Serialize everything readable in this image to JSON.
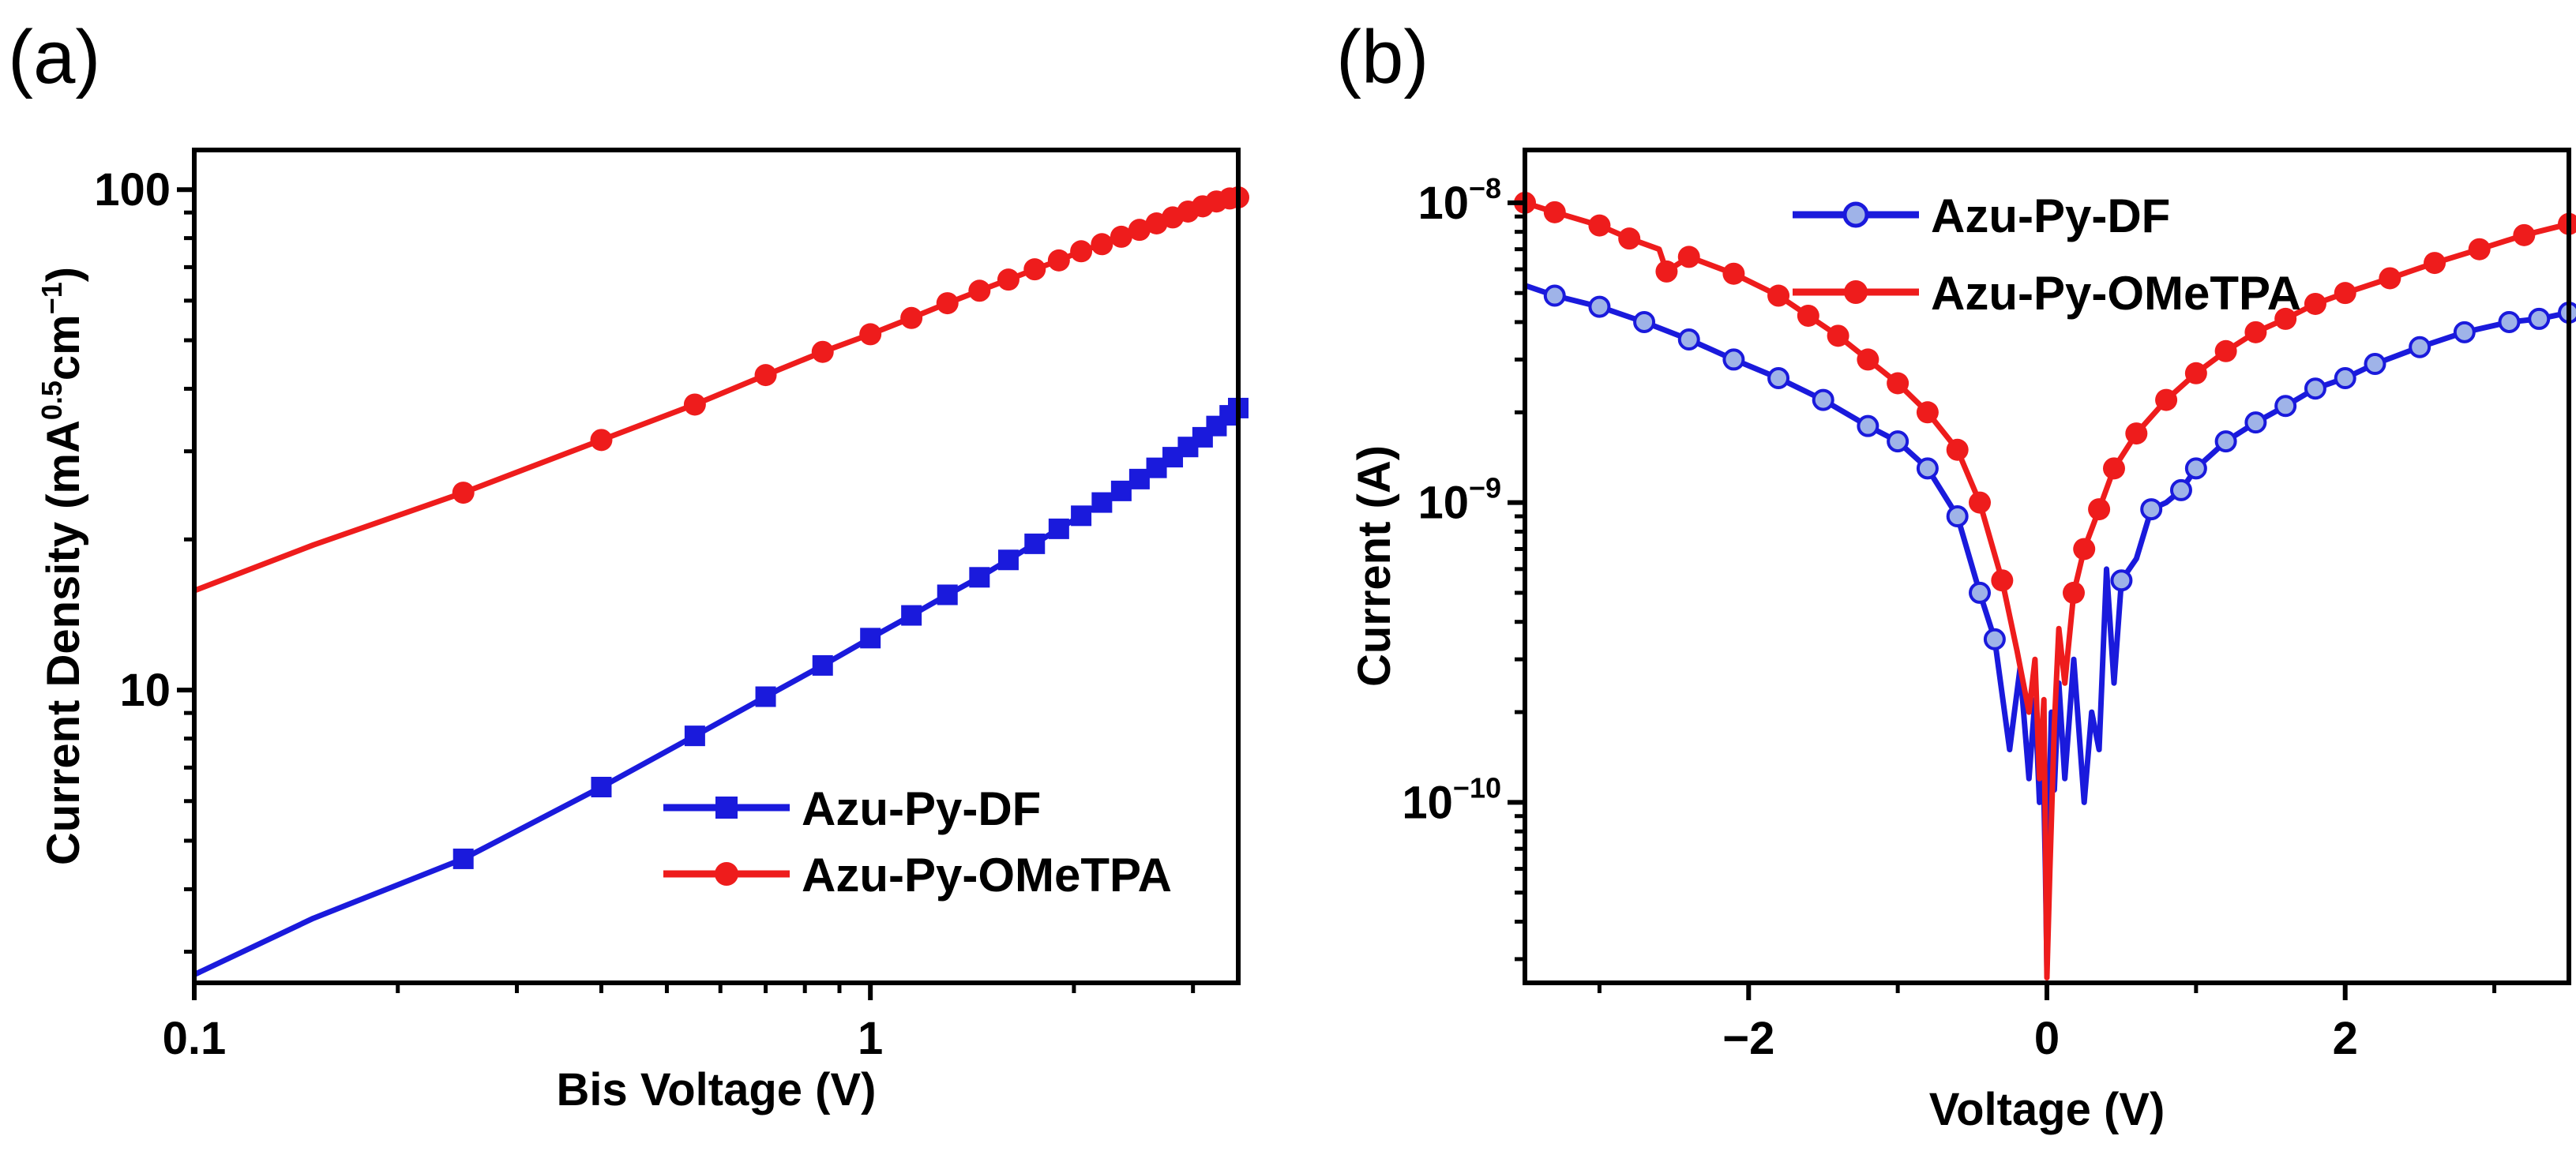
{
  "chart_data": [
    {
      "panel": "(a)",
      "type": "line",
      "xscale": "log",
      "yscale": "log",
      "xlabel": "Bis Voltage (V)",
      "ylabel": "Current Density (mA0.5cm-1)",
      "ylabel_parts": {
        "main": "Current Density (mA",
        "exp1": "0.5",
        "mid": "cm",
        "exp2": "−1",
        "end": ")"
      },
      "xlim": [
        0.1,
        3.5
      ],
      "ylim": [
        2.6,
        120
      ],
      "xticks": [
        0.1,
        1
      ],
      "xtick_labels": [
        "0.1",
        "1"
      ],
      "yticks": [
        10,
        100
      ],
      "ytick_labels": [
        "10",
        "100"
      ],
      "legend_position": "bottom-right",
      "series": [
        {
          "name": "Azu-Py-DF",
          "color": "#1a1adc",
          "marker": "square",
          "x": [
            0.1,
            0.15,
            0.25,
            0.4,
            0.55,
            0.7,
            0.85,
            1.0,
            1.15,
            1.3,
            1.45,
            1.6,
            1.75,
            1.9,
            2.05,
            2.2,
            2.35,
            2.5,
            2.65,
            2.8,
            2.95,
            3.1,
            3.25,
            3.4,
            3.5
          ],
          "y": [
            2.7,
            3.5,
            4.6,
            6.4,
            8.1,
            9.7,
            11.2,
            12.7,
            14.1,
            15.5,
            16.8,
            18.2,
            19.6,
            21.0,
            22.3,
            23.7,
            25.0,
            26.4,
            27.8,
            29.2,
            30.6,
            32.0,
            33.7,
            35.4,
            36.6
          ],
          "marker_x": [
            0.25,
            0.4,
            0.55,
            0.7,
            0.85,
            1.0,
            1.15,
            1.3,
            1.45,
            1.6,
            1.75,
            1.9,
            2.05,
            2.2,
            2.35,
            2.5,
            2.65,
            2.8,
            2.95,
            3.1,
            3.25,
            3.4,
            3.5
          ]
        },
        {
          "name": "Azu-Py-OMeTPA",
          "color": "#ee1c1c",
          "marker": "circle",
          "x": [
            0.1,
            0.15,
            0.25,
            0.4,
            0.55,
            0.7,
            0.85,
            1.0,
            1.15,
            1.3,
            1.45,
            1.6,
            1.75,
            1.9,
            2.05,
            2.2,
            2.35,
            2.5,
            2.65,
            2.8,
            2.95,
            3.1,
            3.25,
            3.4,
            3.5
          ],
          "y": [
            15.8,
            19.5,
            24.8,
            31.6,
            37.2,
            42.6,
            47.4,
            51.4,
            55.4,
            59.3,
            62.8,
            66.1,
            69.3,
            72.2,
            75.3,
            77.8,
            80.5,
            83.1,
            85.6,
            88.0,
            90.4,
            92.6,
            94.7,
            96.0,
            96.5
          ],
          "marker_x": [
            0.25,
            0.4,
            0.55,
            0.7,
            0.85,
            1.0,
            1.15,
            1.3,
            1.45,
            1.6,
            1.75,
            1.9,
            2.05,
            2.2,
            2.35,
            2.5,
            2.65,
            2.8,
            2.95,
            3.1,
            3.25,
            3.4,
            3.5
          ]
        }
      ]
    },
    {
      "panel": "(b)",
      "type": "line",
      "xscale": "linear",
      "yscale": "log",
      "xlabel": "Voltage (V)",
      "ylabel": "Current (A)",
      "xlim": [
        -3.5,
        3.5
      ],
      "ylim": [
        2.5e-11,
        1.5e-08
      ],
      "xticks": [
        -2,
        0,
        2
      ],
      "xtick_labels": [
        "−2",
        "0",
        "2"
      ],
      "xminor": [
        -3,
        -1,
        1,
        3
      ],
      "yticks": [
        1e-10,
        1e-09,
        1e-08
      ],
      "ytick_labels": [
        {
          "base": "10",
          "exp": "−10"
        },
        {
          "base": "10",
          "exp": "−9"
        },
        {
          "base": "10",
          "exp": "−8"
        }
      ],
      "legend_position": "top-center",
      "series": [
        {
          "name": "Azu-Py-DF",
          "color": "#1a1adc",
          "marker": "circle-open",
          "x": [
            -3.5,
            -3.3,
            -3.0,
            -2.7,
            -2.4,
            -2.1,
            -1.8,
            -1.5,
            -1.2,
            -1.0,
            -0.8,
            -0.6,
            -0.45,
            -0.35,
            -0.25,
            -0.18,
            -0.12,
            -0.08,
            -0.05,
            -0.03,
            -0.01,
            0.0,
            0.01,
            0.03,
            0.05,
            0.08,
            0.12,
            0.18,
            0.25,
            0.3,
            0.35,
            0.4,
            0.45,
            0.5,
            0.6,
            0.7,
            0.8,
            0.9,
            1.0,
            1.2,
            1.4,
            1.6,
            1.8,
            2.0,
            2.2,
            2.5,
            2.8,
            3.1,
            3.3,
            3.5
          ],
          "y": [
            5.3e-09,
            4.9e-09,
            4.5e-09,
            4e-09,
            3.5e-09,
            3e-09,
            2.6e-09,
            2.2e-09,
            1.8e-09,
            1.6e-09,
            1.3e-09,
            9e-10,
            5e-10,
            3.5e-10,
            1.5e-10,
            2.8e-10,
            1.2e-10,
            2.2e-10,
            1e-10,
            1.8e-10,
            6e-11,
            2.8e-11,
            8e-11,
            2e-10,
            1.1e-10,
            2.5e-10,
            1.2e-10,
            3e-10,
            1e-10,
            2e-10,
            1.5e-10,
            6e-10,
            2.5e-10,
            5.5e-10,
            6.5e-10,
            9.5e-10,
            1e-09,
            1.1e-09,
            1.3e-09,
            1.6e-09,
            1.85e-09,
            2.1e-09,
            2.4e-09,
            2.6e-09,
            2.9e-09,
            3.3e-09,
            3.7e-09,
            4e-09,
            4.1e-09,
            4.3e-09
          ],
          "marker_x": [
            -3.3,
            -3.0,
            -2.7,
            -2.4,
            -2.1,
            -1.8,
            -1.5,
            -1.2,
            -1.0,
            -0.8,
            -0.6,
            -0.45,
            -0.35,
            0.5,
            0.7,
            0.9,
            1.0,
            1.2,
            1.4,
            1.6,
            1.8,
            2.0,
            2.2,
            2.5,
            2.8,
            3.1,
            3.3,
            3.5
          ]
        },
        {
          "name": "Azu-Py-OMeTPA",
          "color": "#ee1c1c",
          "marker": "circle",
          "x": [
            -3.5,
            -3.3,
            -3.0,
            -2.8,
            -2.6,
            -2.55,
            -2.4,
            -2.1,
            -1.8,
            -1.6,
            -1.4,
            -1.2,
            -1.0,
            -0.8,
            -0.6,
            -0.45,
            -0.3,
            -0.2,
            -0.12,
            -0.08,
            -0.05,
            -0.02,
            0.0,
            0.02,
            0.05,
            0.08,
            0.12,
            0.18,
            0.25,
            0.35,
            0.45,
            0.6,
            0.8,
            1.0,
            1.2,
            1.4,
            1.6,
            1.8,
            2.0,
            2.3,
            2.6,
            2.9,
            3.2,
            3.5
          ],
          "y": [
            1e-08,
            9.3e-09,
            8.4e-09,
            7.6e-09,
            7e-09,
            5.9e-09,
            6.6e-09,
            5.8e-09,
            4.9e-09,
            4.2e-09,
            3.6e-09,
            3e-09,
            2.5e-09,
            2e-09,
            1.5e-09,
            1e-09,
            5.5e-10,
            3.2e-10,
            2e-10,
            3e-10,
            1.2e-10,
            2.2e-10,
            2.6e-11,
            6e-11,
            1.8e-10,
            3.8e-10,
            2.5e-10,
            5e-10,
            7e-10,
            9.5e-10,
            1.3e-09,
            1.7e-09,
            2.2e-09,
            2.7e-09,
            3.2e-09,
            3.7e-09,
            4.1e-09,
            4.6e-09,
            5e-09,
            5.6e-09,
            6.3e-09,
            7e-09,
            7.8e-09,
            8.5e-09
          ],
          "marker_x": [
            -3.5,
            -3.3,
            -3.0,
            -2.8,
            -2.55,
            -2.4,
            -2.1,
            -1.8,
            -1.6,
            -1.4,
            -1.2,
            -1.0,
            -0.8,
            -0.6,
            -0.45,
            -0.3,
            0.18,
            0.25,
            0.35,
            0.45,
            0.6,
            0.8,
            1.0,
            1.2,
            1.4,
            1.6,
            1.8,
            2.0,
            2.3,
            2.6,
            2.9,
            3.2,
            3.5
          ]
        }
      ]
    }
  ]
}
